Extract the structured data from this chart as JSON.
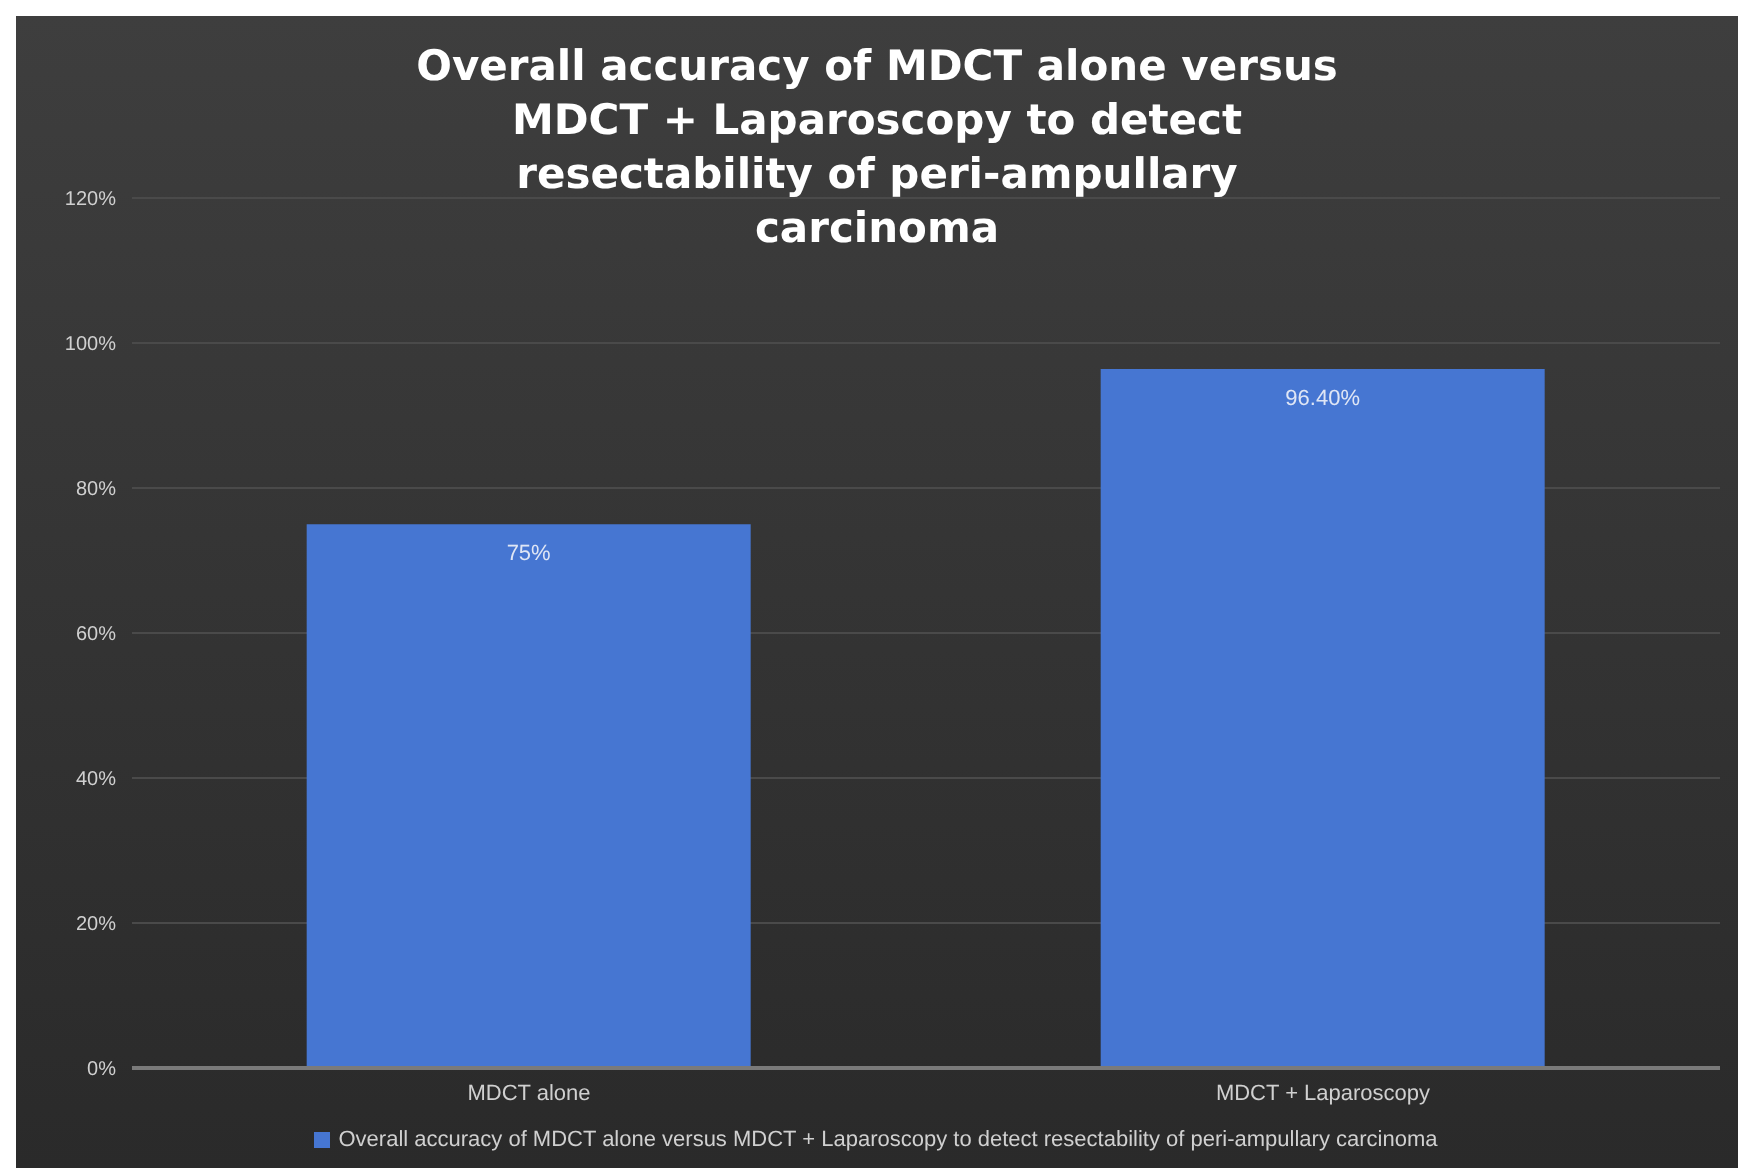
{
  "chart_data": {
    "type": "bar",
    "title": "Overall accuracy of MDCT alone versus MDCT + Laparoscopy to detect resectability of peri-ampullary carcinoma",
    "categories": [
      "MDCT alone",
      "MDCT + Laparoscopy"
    ],
    "series": [
      {
        "name": "Overall accuracy of MDCT alone versus MDCT + Laparoscopy to detect resectability of peri-ampullary carcinoma",
        "color": "#4676d2",
        "values": [
          75,
          96.4
        ],
        "value_labels": [
          "75%",
          "96.40%"
        ]
      }
    ],
    "ylim": [
      0,
      120
    ],
    "yticks": [
      {
        "value": 0,
        "label": "0%"
      },
      {
        "value": 20,
        "label": "20%"
      },
      {
        "value": 40,
        "label": "40%"
      },
      {
        "value": 60,
        "label": "60%"
      },
      {
        "value": 80,
        "label": "80%"
      },
      {
        "value": 100,
        "label": "100%"
      },
      {
        "value": 120,
        "label": "120%"
      }
    ],
    "grid": "y",
    "legend": "bottom"
  }
}
